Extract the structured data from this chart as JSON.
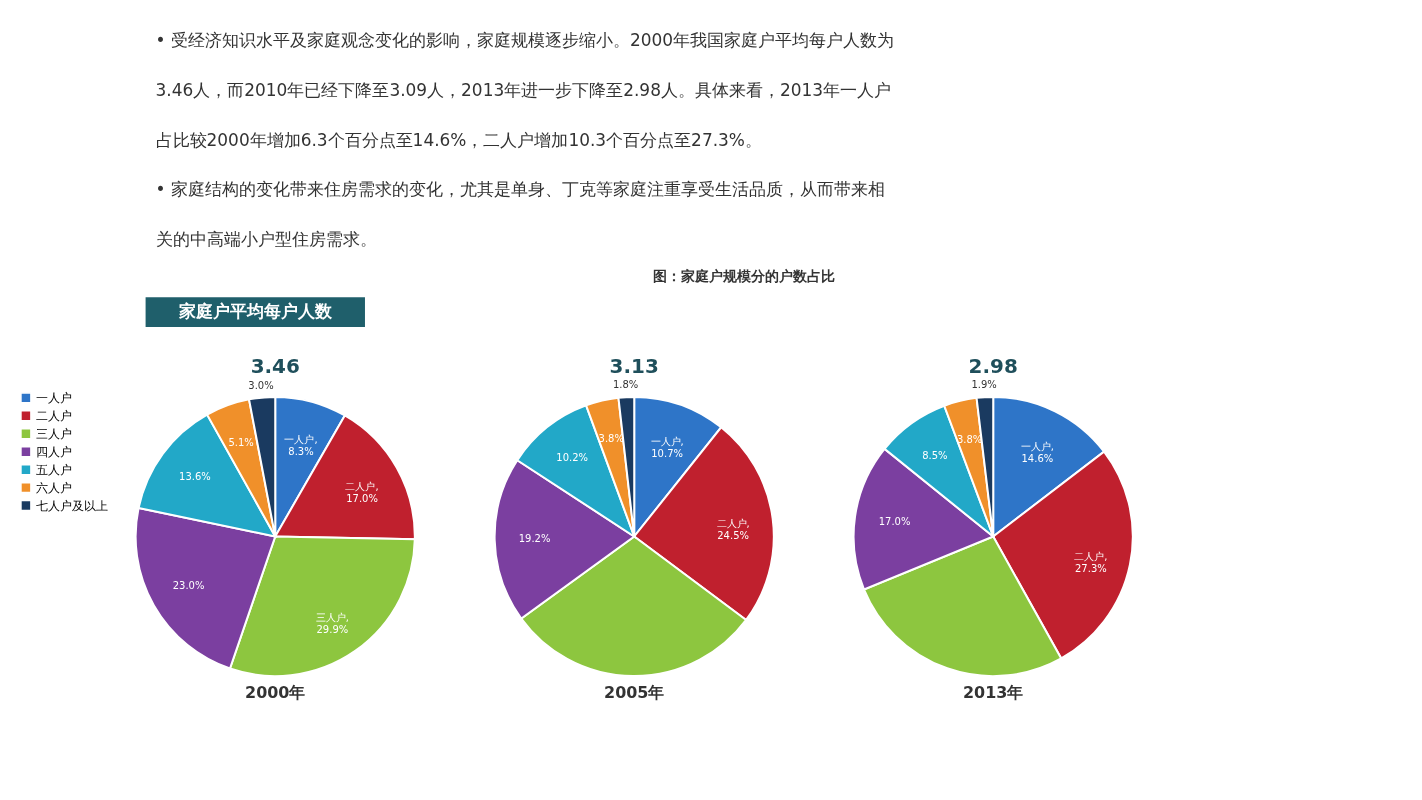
{
  "chart_data": [
    {
      "type": "other",
      "title": "图：家庭户规模分的户数占比",
      "subtitle": "家庭户平均每户人数",
      "annotations": [
        "•  受经济知识水平及家庭观念变化的影响，家庭规模逐步缩小。2000年我国家庭户平均每户人数为",
        "3.46人，而2010年已经下降至3.09人，2013年进一步下降至2.98人。具体来看，2013年一人户",
        "占比较2000年增加6.3个百分点至14.6%，二人户增加10.3个百分点至27.3%。",
        "•  家庭结构的变化带来住房需求的变化，尤其是单身、丁克等家庭注重享受生活品质，从而带来相",
        "关的中高端小户型住房需求。"
      ]
    },
    {
      "type": "pie",
      "title": "2000年",
      "subtitle": "3.46",
      "legend": "left",
      "categories": [
        "一人户",
        "二人户",
        "三人户",
        "四人户",
        "五人户",
        "六人户",
        "七人户及以上"
      ],
      "values": [
        8.3,
        17.0,
        29.9,
        23.0,
        13.6,
        5.1,
        3.0
      ],
      "colors": [
        "#2e75c8",
        "#c0202e",
        "#8dc63f",
        "#7b3fa0",
        "#22a8c8",
        "#f0902a",
        "#1a3a60"
      ],
      "value_labels": [
        "一人户,8.3%",
        "二人户,17.0%",
        "三人户,29.9%",
        "23.0%",
        "13.6%",
        "5.1%",
        "3.0%"
      ]
    },
    {
      "type": "pie",
      "title": "2005年",
      "subtitle": "3.13",
      "categories": [
        null,
        null,
        null,
        null,
        null,
        null,
        null
      ],
      "values": [
        10.7,
        24.5,
        29.8,
        19.2,
        10.2,
        3.8,
        1.8
      ],
      "colors": [
        "#2e75c8",
        "#c0202e",
        "#8dc63f",
        "#7b3fa0",
        "#22a8c8",
        "#f0902a",
        "#1a3a60"
      ],
      "value_labels": [
        "一人户,10.7%",
        "二人户,24.5%",
        null,
        "19.2%",
        "10.2%",
        "3.8%",
        "1.8%"
      ]
    },
    {
      "type": "pie",
      "title": "2013年",
      "subtitle": "2.98",
      "categories": [
        null,
        null,
        null,
        null,
        null,
        null,
        null
      ],
      "values": [
        14.6,
        27.3,
        26.9,
        17.0,
        8.5,
        3.8,
        1.9
      ],
      "colors": [
        "#2e75c8",
        "#c0202e",
        "#8dc63f",
        "#7b3fa0",
        "#22a8c8",
        "#f0902a",
        "#1a3a60"
      ],
      "value_labels": [
        "一人户,14.6%",
        "二人户,27.3%",
        null,
        "17.0%",
        "8.5%",
        "3.8%",
        "1.9%"
      ]
    }
  ]
}
